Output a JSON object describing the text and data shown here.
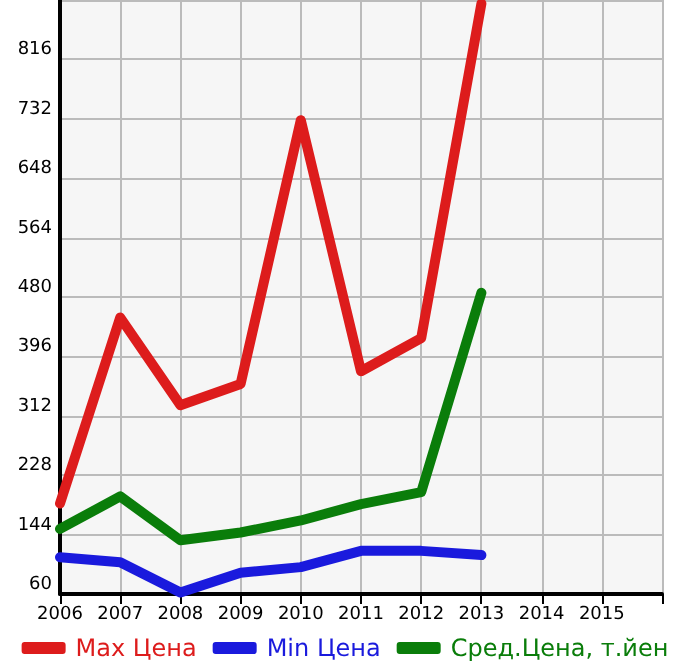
{
  "chart_data": {
    "type": "line",
    "x": [
      2006,
      2007,
      2008,
      2009,
      2010,
      2011,
      2012,
      2013
    ],
    "series": [
      {
        "name": "Max Цена",
        "color": "#dd1c1c",
        "values": [
          188,
          451,
          327,
          357,
          730,
          375,
          422,
          895
        ]
      },
      {
        "name": "Min Цена",
        "color": "#1a1add",
        "values": [
          112,
          105,
          62,
          90,
          98,
          121,
          121,
          115
        ]
      },
      {
        "name": "Сред.Цена, т.йен",
        "color": "#0a7d0a",
        "values": [
          152,
          198,
          136,
          147,
          164,
          187,
          204,
          486
        ]
      }
    ],
    "xlim": [
      2006,
      2016
    ],
    "xticks": [
      2006,
      2007,
      2008,
      2009,
      2010,
      2011,
      2012,
      2013,
      2014,
      2015,
      {
        "value": 2016,
        "label": null
      }
    ],
    "ylim": [
      60,
      900
    ],
    "yticks": [
      60,
      144,
      228,
      312,
      396,
      480,
      564,
      648,
      732,
      816,
      {
        "value": 900,
        "label": null
      }
    ],
    "grid": true,
    "legend": "bottom",
    "marker": "none",
    "line_style": "solid"
  }
}
